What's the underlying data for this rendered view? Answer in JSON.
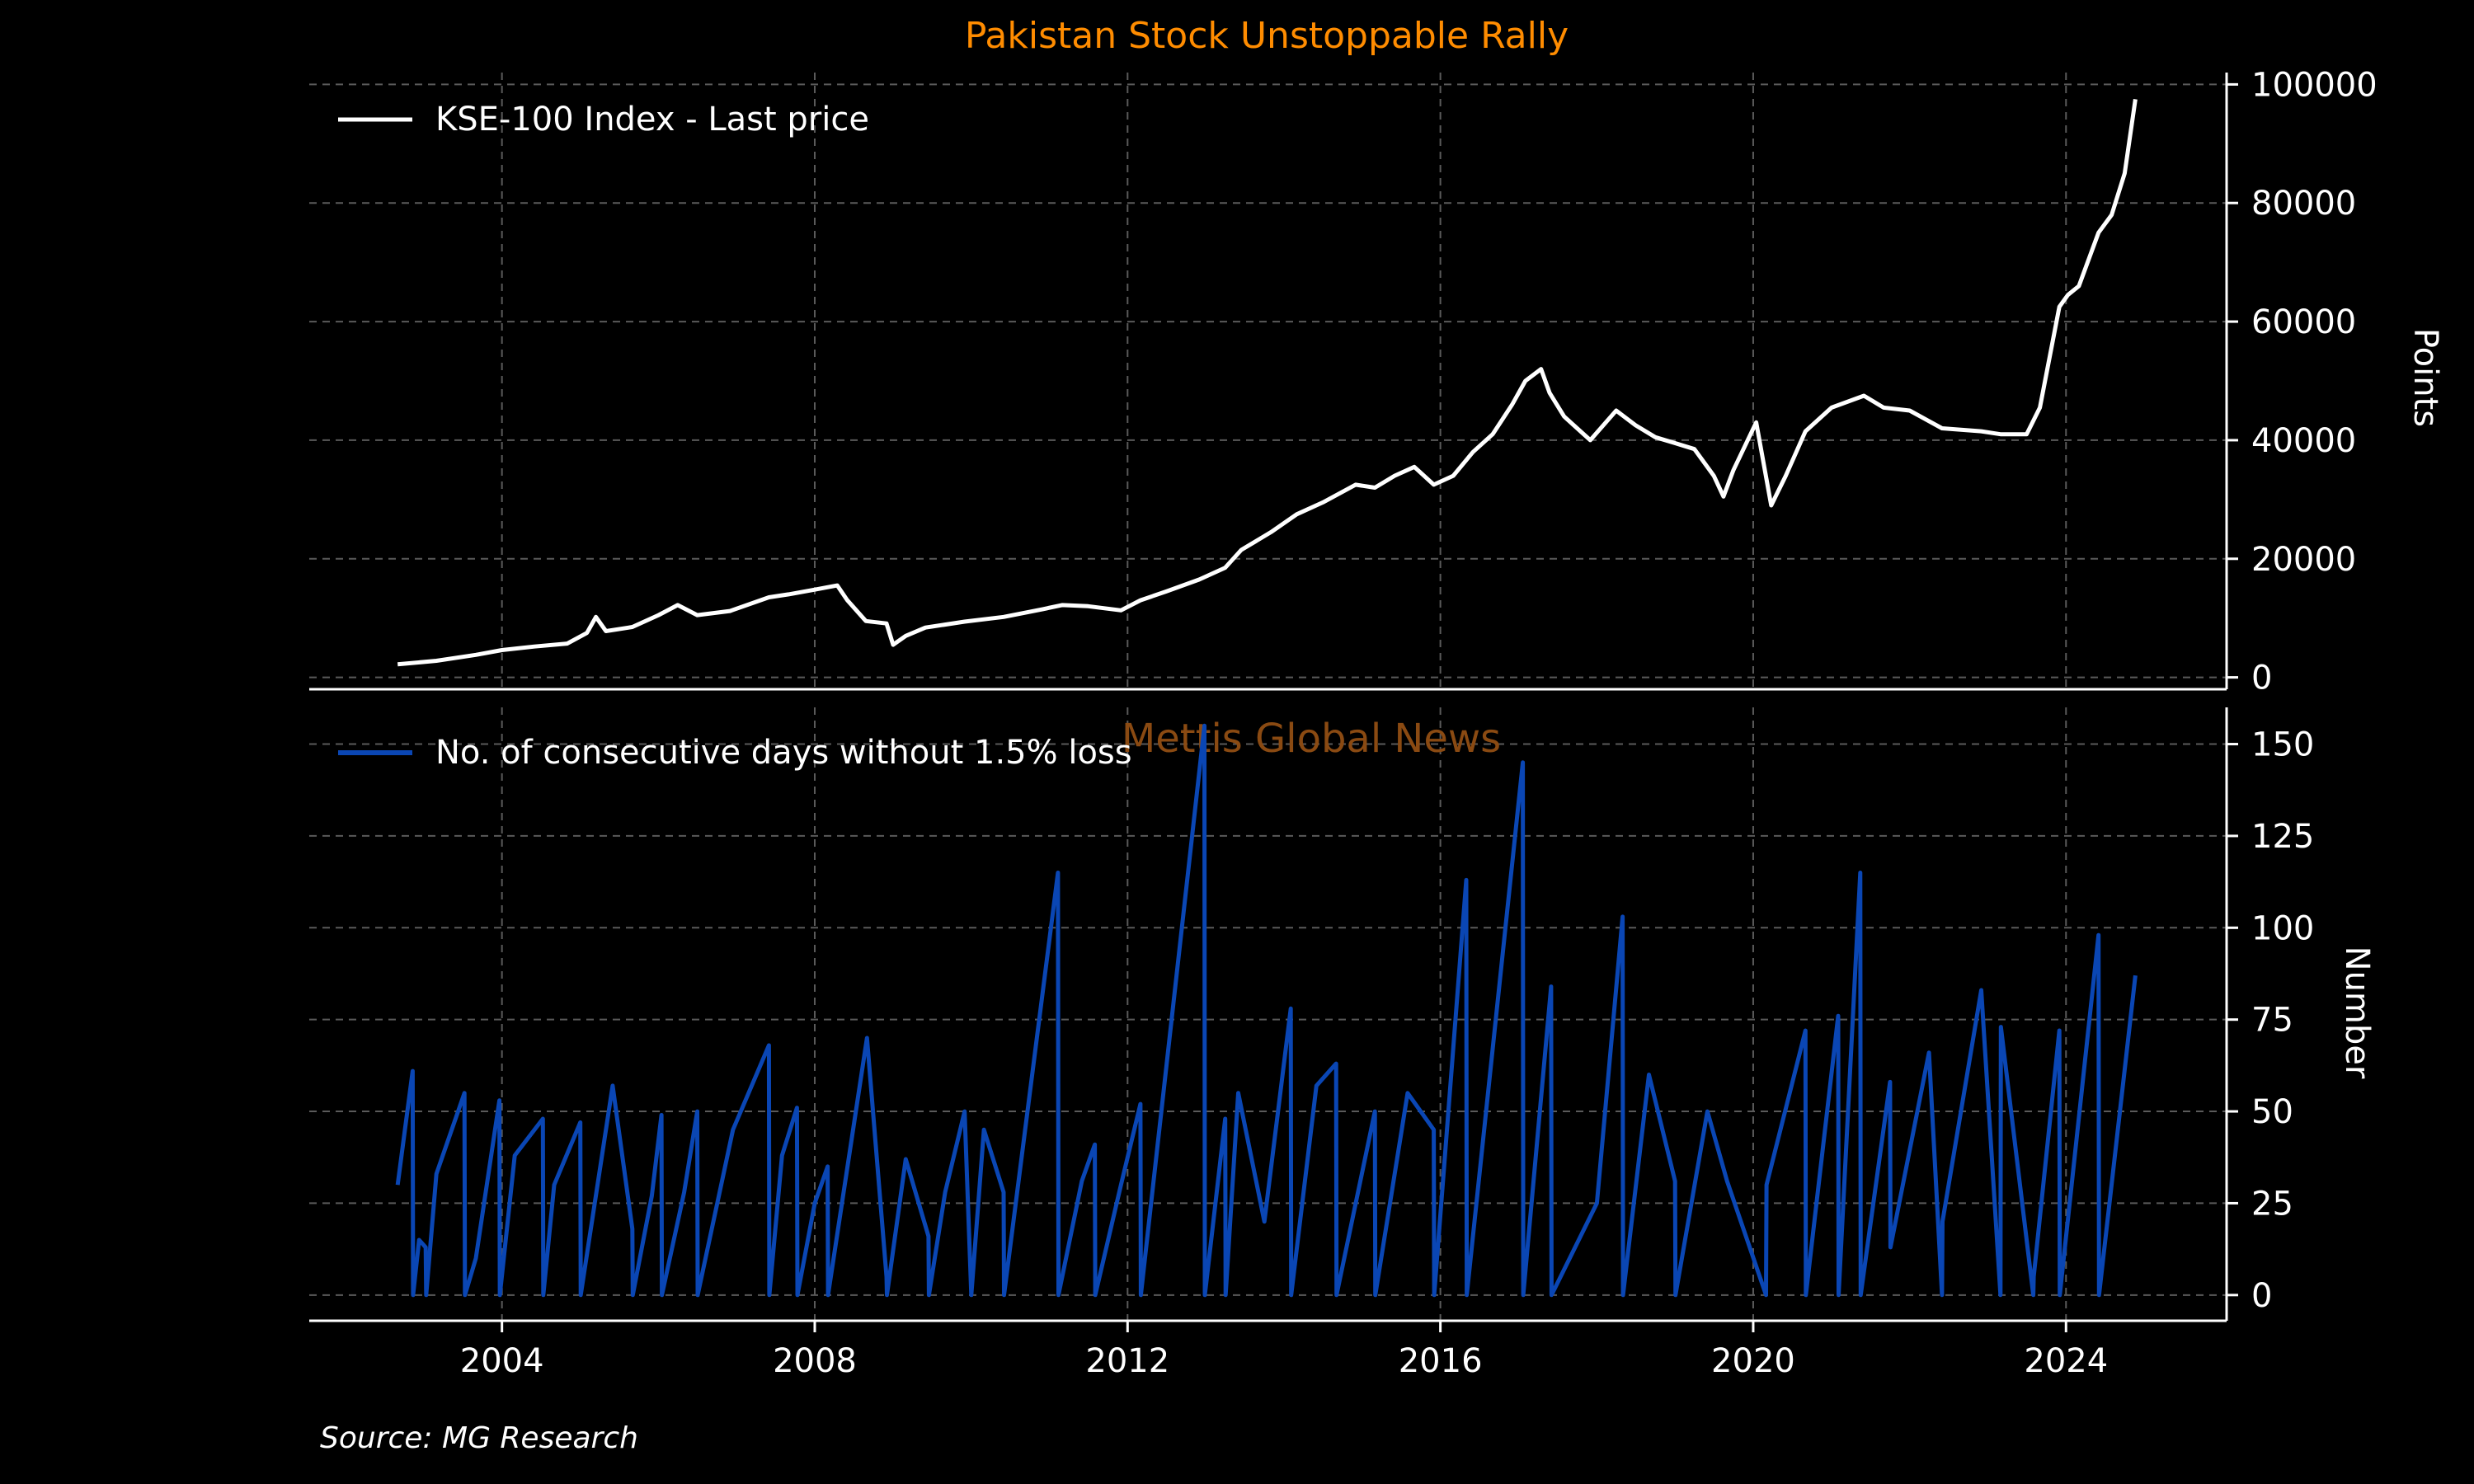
{
  "title": "Pakistan Stock Unstoppable Rally",
  "watermark": "Mettis Global News",
  "source": "Source: MG Research",
  "colors": {
    "background": "#000000",
    "title": "#ff8c00",
    "price_line": "#ffffff",
    "count_line": "#0a46b4",
    "grid": "#5a5a5a",
    "watermark": "#8a4a12"
  },
  "chart_data": [
    {
      "type": "line",
      "ylabel": "Points",
      "ylim": [
        -2000,
        102000
      ],
      "yticks": [
        0,
        20000,
        40000,
        60000,
        80000,
        100000
      ],
      "xlim": [
        "2001-07-15",
        "2026-01-20"
      ],
      "xticks": [
        "2004",
        "2008",
        "2012",
        "2016",
        "2020",
        "2024"
      ],
      "grid": true,
      "legend_position": "top-left",
      "series": [
        {
          "name": "KSE-100 Index - Last price",
          "x": [
            "2002-09-01",
            "2003-03-01",
            "2003-09-01",
            "2004-01-01",
            "2004-06-01",
            "2004-11-01",
            "2005-02-01",
            "2005-03-15",
            "2005-05-01",
            "2005-09-01",
            "2006-01-01",
            "2006-04-01",
            "2006-07-01",
            "2006-12-01",
            "2007-06-01",
            "2007-09-01",
            "2008-01-01",
            "2008-04-15",
            "2008-06-01",
            "2008-08-27",
            "2008-12-01",
            "2009-01-01",
            "2009-03-01",
            "2009-06-01",
            "2009-12-01",
            "2010-06-01",
            "2010-12-01",
            "2011-03-01",
            "2011-07-01",
            "2011-12-01",
            "2012-03-01",
            "2012-07-01",
            "2012-12-01",
            "2013-04-01",
            "2013-06-15",
            "2013-11-01",
            "2014-03-01",
            "2014-07-01",
            "2014-12-01",
            "2015-03-01",
            "2015-06-01",
            "2015-09-01",
            "2015-12-01",
            "2016-03-01",
            "2016-06-01",
            "2016-09-01",
            "2016-12-01",
            "2017-02-01",
            "2017-04-15",
            "2017-05-25",
            "2017-08-01",
            "2017-12-01",
            "2018-04-01",
            "2018-07-01",
            "2018-10-01",
            "2019-01-01",
            "2019-04-01",
            "2019-07-01",
            "2019-08-15",
            "2019-10-01",
            "2020-01-15",
            "2020-03-25",
            "2020-06-01",
            "2020-09-01",
            "2021-01-01",
            "2021-06-01",
            "2021-09-01",
            "2022-01-01",
            "2022-06-01",
            "2022-12-01",
            "2023-03-01",
            "2023-07-01",
            "2023-09-01",
            "2023-12-01",
            "2024-01-10",
            "2024-03-01",
            "2024-06-01",
            "2024-08-01",
            "2024-10-01",
            "2024-11-20"
          ],
          "y": [
            2200,
            2800,
            3800,
            4600,
            5200,
            5700,
            7500,
            10200,
            7800,
            8500,
            10500,
            12200,
            10500,
            11200,
            13500,
            14000,
            14800,
            15500,
            13000,
            9500,
            9100,
            5500,
            7000,
            8400,
            9400,
            10200,
            11500,
            12200,
            12000,
            11300,
            13000,
            14500,
            16500,
            18500,
            21500,
            24500,
            27500,
            29500,
            32500,
            32000,
            34000,
            35500,
            32500,
            34000,
            38000,
            41000,
            46000,
            50000,
            52000,
            48000,
            44000,
            40000,
            45000,
            42500,
            40500,
            39500,
            38500,
            34000,
            30500,
            35000,
            43000,
            29000,
            34000,
            41500,
            45500,
            47500,
            45500,
            45000,
            42000,
            41500,
            41000,
            41000,
            45500,
            62500,
            64500,
            66000,
            75000,
            78000,
            85000,
            97500
          ]
        }
      ]
    },
    {
      "type": "line",
      "ylabel": "Number",
      "ylim": [
        -7,
        160
      ],
      "yticks": [
        0,
        25,
        50,
        75,
        100,
        125,
        150
      ],
      "xlim": [
        "2001-07-15",
        "2026-01-20"
      ],
      "xticks": [
        "2004",
        "2008",
        "2012",
        "2016",
        "2020",
        "2024"
      ],
      "grid": true,
      "legend_position": "top-left",
      "series": [
        {
          "name": "No. of consecutive days without 1.5% loss",
          "x": [
            "2002-09-01",
            "2002-11-10",
            "2002-11-12",
            "2002-12-10",
            "2003-01-10",
            "2003-01-12",
            "2003-03-01",
            "2003-07-10",
            "2003-07-12",
            "2003-09-01",
            "2003-12-20",
            "2003-12-22",
            "2004-03-01",
            "2004-07-10",
            "2004-07-12",
            "2004-09-01",
            "2005-01-01",
            "2005-01-03",
            "2005-06-01",
            "2005-09-01",
            "2005-09-03",
            "2005-12-01",
            "2006-01-15",
            "2006-01-17",
            "2006-05-01",
            "2006-07-01",
            "2006-07-03",
            "2006-12-15",
            "2007-06-01",
            "2007-06-03",
            "2007-08-01",
            "2007-10-10",
            "2007-10-12",
            "2008-01-01",
            "2008-03-01",
            "2008-03-03",
            "2008-09-01",
            "2008-12-01",
            "2008-12-03",
            "2009-03-01",
            "2009-06-15",
            "2009-06-17",
            "2009-09-01",
            "2009-12-01",
            "2010-01-01",
            "2010-03-01",
            "2010-06-01",
            "2010-06-03",
            "2011-02-10",
            "2011-02-12",
            "2011-06-01",
            "2011-08-01",
            "2011-08-03",
            "2011-12-01",
            "2012-03-01",
            "2012-03-03",
            "2012-12-25",
            "2012-12-27",
            "2013-04-01",
            "2013-04-03",
            "2013-06-01",
            "2013-10-01",
            "2014-02-01",
            "2014-02-03",
            "2014-06-01",
            "2014-09-01",
            "2014-09-03",
            "2015-03-01",
            "2015-03-03",
            "2015-08-01",
            "2015-12-01",
            "2015-12-03",
            "2016-05-01",
            "2016-05-03",
            "2017-01-20",
            "2017-01-22",
            "2017-06-01",
            "2017-06-03",
            "2018-01-01",
            "2018-05-01",
            "2018-05-03",
            "2018-09-01",
            "2019-01-01",
            "2019-01-03",
            "2019-06-01",
            "2019-09-01",
            "2020-03-01",
            "2020-03-03",
            "2020-09-01",
            "2020-09-03",
            "2021-02-01",
            "2021-02-03",
            "2021-05-15",
            "2021-05-17",
            "2021-10-01",
            "2021-10-03",
            "2022-04-01",
            "2022-06-01",
            "2022-06-03",
            "2022-12-01",
            "2023-03-01",
            "2023-03-03",
            "2023-08-01",
            "2023-08-03",
            "2023-12-01",
            "2023-12-03",
            "2024-06-01",
            "2024-06-03",
            "2024-11-20"
          ],
          "y": [
            30,
            61,
            0,
            15,
            13,
            0,
            33,
            55,
            0,
            10,
            53,
            0,
            38,
            48,
            0,
            30,
            47,
            0,
            57,
            18,
            0,
            27,
            49,
            0,
            28,
            50,
            0,
            45,
            68,
            0,
            38,
            51,
            0,
            25,
            35,
            0,
            70,
            5,
            0,
            37,
            16,
            0,
            28,
            50,
            0,
            45,
            28,
            0,
            115,
            0,
            31,
            41,
            0,
            30,
            52,
            0,
            155,
            0,
            48,
            0,
            55,
            20,
            78,
            0,
            57,
            63,
            0,
            50,
            0,
            55,
            45,
            0,
            113,
            0,
            145,
            0,
            84,
            0,
            25,
            103,
            0,
            60,
            31,
            0,
            50,
            31,
            0,
            30,
            72,
            0,
            76,
            0,
            115,
            0,
            58,
            13,
            66,
            0,
            20,
            83,
            0,
            73,
            0,
            5,
            72,
            0,
            98,
            0,
            87
          ]
        }
      ]
    }
  ]
}
